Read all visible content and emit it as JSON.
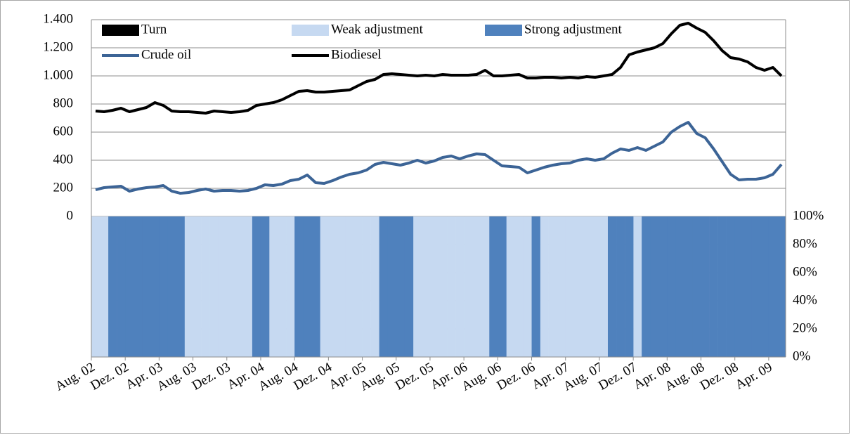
{
  "chart_data": {
    "type": "combo",
    "categories": [
      "Aug. 02",
      null,
      null,
      null,
      "Dez. 02",
      null,
      null,
      null,
      "Apr. 03",
      null,
      null,
      null,
      "Aug. 03",
      null,
      null,
      null,
      "Dez. 03",
      null,
      null,
      null,
      "Apr. 04",
      null,
      null,
      null,
      "Aug. 04",
      null,
      null,
      null,
      "Dez. 04",
      null,
      null,
      null,
      "Apr. 05",
      null,
      null,
      null,
      "Aug. 05",
      null,
      null,
      null,
      "Dez. 05",
      null,
      null,
      null,
      "Apr. 06",
      null,
      null,
      null,
      "Aug. 06",
      null,
      null,
      null,
      "Dez. 06",
      null,
      null,
      null,
      "Apr. 07",
      null,
      null,
      null,
      "Aug. 07",
      null,
      null,
      null,
      "Dez. 07",
      null,
      null,
      null,
      "Apr. 08",
      null,
      null,
      null,
      "Aug. 08",
      null,
      null,
      null,
      "Dez. 08",
      null,
      null,
      null,
      "Apr. 09",
      null
    ],
    "series": [
      {
        "name": "Turn",
        "type": "bar",
        "axis": "y2",
        "color": "#000000",
        "values": [
          0,
          0,
          0,
          0,
          0,
          0,
          0,
          0,
          0,
          0,
          0,
          0,
          0,
          0,
          0,
          0,
          0,
          0,
          0,
          0,
          0,
          0,
          0,
          0,
          0,
          0,
          0,
          0,
          0,
          0,
          0,
          0,
          0,
          0,
          0,
          0,
          0,
          0,
          0,
          0,
          0,
          0,
          0,
          0,
          0,
          0,
          0,
          0,
          0,
          0,
          0,
          0,
          0,
          0,
          0,
          0,
          0,
          0,
          0,
          0,
          0,
          0,
          100,
          0,
          0,
          0,
          0,
          0,
          100,
          0,
          0,
          0,
          100,
          0,
          100,
          100,
          0,
          0,
          100,
          0,
          0,
          0
        ]
      },
      {
        "name": "Weak adjustment",
        "type": "bar",
        "axis": "y2",
        "color": "#c6d9f1",
        "values": [
          100,
          100,
          0,
          0,
          0,
          0,
          0,
          0,
          0,
          0,
          0,
          100,
          100,
          100,
          100,
          100,
          100,
          100,
          100,
          0,
          0,
          100,
          100,
          100,
          0,
          0,
          0,
          100,
          100,
          100,
          100,
          100,
          100,
          100,
          0,
          0,
          0,
          0,
          100,
          100,
          100,
          100,
          100,
          100,
          100,
          100,
          100,
          0,
          0,
          100,
          100,
          100,
          0,
          100,
          100,
          100,
          100,
          100,
          100,
          100,
          100,
          0,
          0,
          0,
          100,
          0,
          0,
          0,
          0,
          0,
          0,
          0,
          0,
          0,
          0,
          0,
          0,
          0,
          0,
          0,
          0,
          0
        ]
      },
      {
        "name": "Strong adjustment",
        "type": "bar",
        "axis": "y2",
        "color": "#4f81bd",
        "values": [
          0,
          0,
          100,
          100,
          100,
          100,
          100,
          100,
          100,
          100,
          100,
          0,
          0,
          0,
          0,
          0,
          0,
          0,
          0,
          100,
          100,
          0,
          0,
          0,
          100,
          100,
          100,
          0,
          0,
          0,
          0,
          0,
          0,
          0,
          100,
          100,
          100,
          100,
          0,
          0,
          0,
          0,
          0,
          0,
          0,
          0,
          0,
          100,
          100,
          0,
          0,
          0,
          100,
          0,
          0,
          0,
          0,
          0,
          0,
          0,
          0,
          100,
          100,
          100,
          0,
          100,
          100,
          100,
          100,
          100,
          100,
          100,
          100,
          100,
          100,
          100,
          100,
          100,
          100,
          100,
          100,
          100
        ]
      },
      {
        "name": "Crude oil",
        "type": "line",
        "color": "#3c6496",
        "values": [
          190,
          205,
          210,
          215,
          180,
          195,
          205,
          210,
          220,
          180,
          165,
          170,
          185,
          195,
          180,
          185,
          185,
          180,
          185,
          200,
          225,
          220,
          230,
          255,
          265,
          295,
          240,
          235,
          255,
          280,
          300,
          310,
          330,
          370,
          385,
          375,
          365,
          380,
          400,
          380,
          395,
          420,
          430,
          410,
          430,
          445,
          440,
          400,
          360,
          355,
          350,
          310,
          330,
          350,
          365,
          375,
          380,
          400,
          410,
          400,
          410,
          450,
          480,
          470,
          490,
          470,
          500,
          530,
          600,
          640,
          670,
          590,
          560,
          480,
          390,
          300,
          260,
          265,
          265,
          275,
          300,
          370
        ]
      },
      {
        "name": "Biodiesel",
        "type": "line",
        "color": "#000000",
        "values": [
          750,
          745,
          755,
          770,
          745,
          760,
          775,
          810,
          790,
          750,
          745,
          745,
          740,
          735,
          750,
          745,
          740,
          745,
          755,
          790,
          800,
          810,
          830,
          860,
          890,
          895,
          885,
          885,
          890,
          895,
          900,
          930,
          960,
          975,
          1010,
          1015,
          1010,
          1005,
          1000,
          1005,
          1000,
          1010,
          1005,
          1005,
          1005,
          1010,
          1040,
          1000,
          1000,
          1005,
          1010,
          985,
          985,
          990,
          990,
          985,
          990,
          985,
          995,
          990,
          1000,
          1010,
          1060,
          1150,
          1170,
          1185,
          1200,
          1230,
          1300,
          1360,
          1375,
          1340,
          1310,
          1250,
          1180,
          1130,
          1120,
          1100,
          1060,
          1040,
          1060,
          1000
        ]
      }
    ],
    "ylim": [
      0,
      1400
    ],
    "yticks": [
      0,
      200,
      400,
      600,
      800,
      {
        "value": 1000,
        "label": "1.000"
      },
      {
        "value": 1200,
        "label": "1.200"
      },
      {
        "value": 1400,
        "label": "1.400"
      }
    ],
    "y2lim": [
      0,
      100
    ],
    "y2ticks": [
      {
        "value": 0,
        "label": "0%"
      },
      {
        "value": 20,
        "label": "20%"
      },
      {
        "value": 40,
        "label": "40%"
      },
      {
        "value": 60,
        "label": "60%"
      },
      {
        "value": 80,
        "label": "80%"
      },
      {
        "value": 100,
        "label": "100%"
      }
    ],
    "grid": true,
    "legend": "top"
  }
}
